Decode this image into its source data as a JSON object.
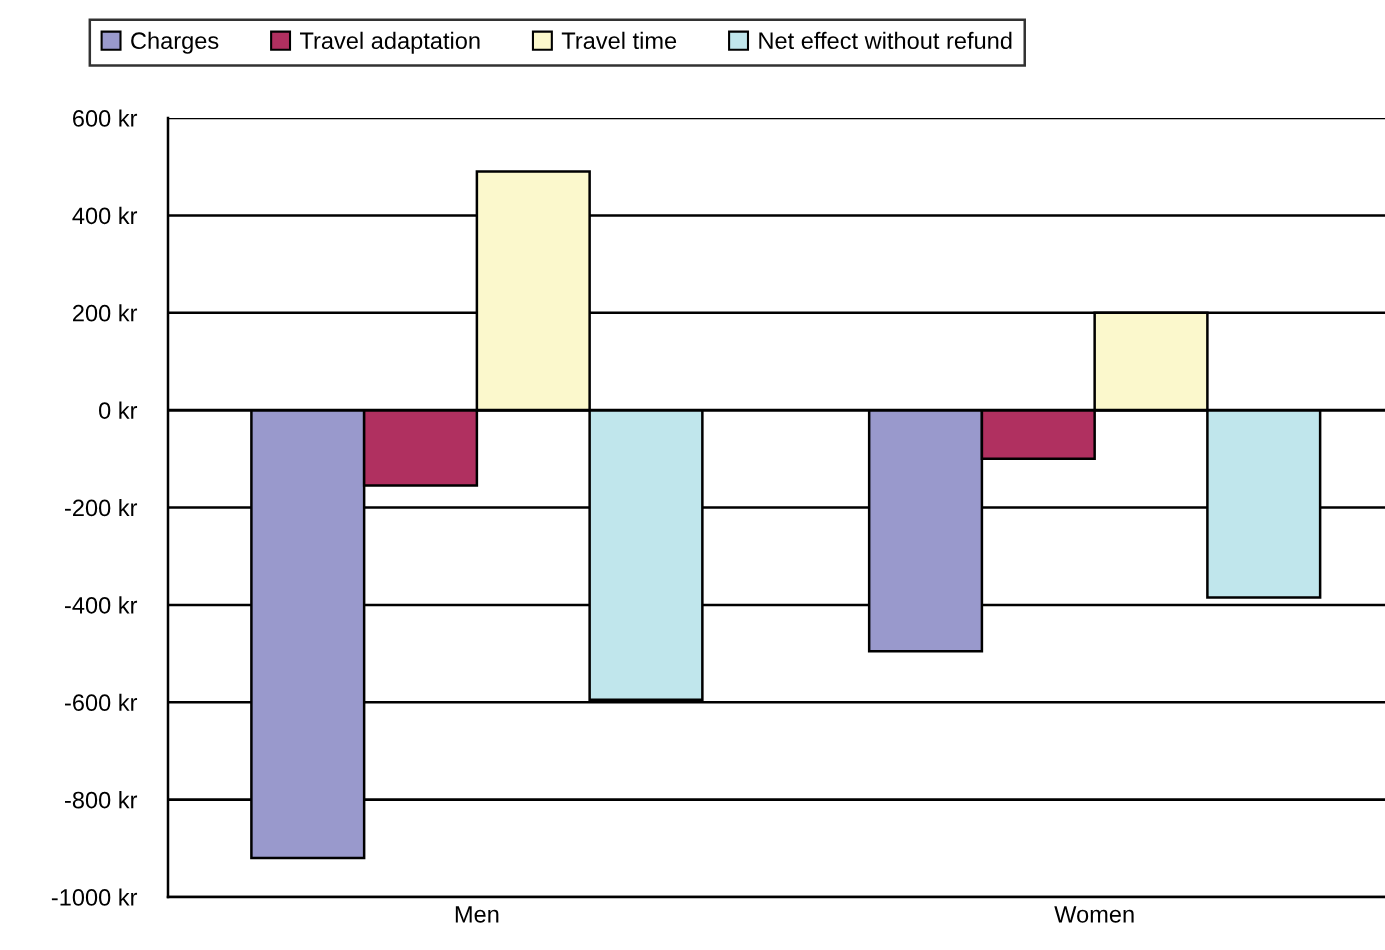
{
  "chart_data": {
    "type": "bar",
    "categories": [
      "Men",
      "Women"
    ],
    "series": [
      {
        "name": "Charges",
        "color": "#9999cc",
        "values": [
          -920,
          -495
        ]
      },
      {
        "name": "Travel adaptation",
        "color": "#b03060",
        "values": [
          -155,
          -100
        ]
      },
      {
        "name": "Travel time",
        "color": "#fbf8cc",
        "values": [
          490,
          200
        ]
      },
      {
        "name": "Net effect without refund",
        "color": "#c0e6ec",
        "values": [
          -595,
          -385
        ]
      }
    ],
    "ylim": [
      -1000,
      600
    ],
    "yticks": [
      {
        "value": -1000,
        "label": "-1000 kr"
      },
      {
        "value": -800,
        "label": "-800 kr"
      },
      {
        "value": -600,
        "label": "-600 kr"
      },
      {
        "value": -400,
        "label": "-400 kr"
      },
      {
        "value": -200,
        "label": "-200 kr"
      },
      {
        "value": 0,
        "label": "0 kr"
      },
      {
        "value": 200,
        "label": "200 kr"
      },
      {
        "value": 400,
        "label": "400 kr"
      },
      {
        "value": 600,
        "label": "600 kr"
      }
    ],
    "grid": "y",
    "legend": "top"
  }
}
